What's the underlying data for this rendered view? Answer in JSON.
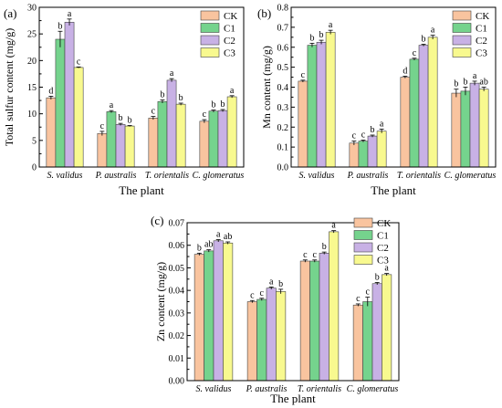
{
  "figure": {
    "legend_labels": [
      "CK",
      "C1",
      "C2",
      "C3"
    ],
    "colors": {
      "CK": "#f9c49f",
      "C1": "#75d38d",
      "C2": "#c8b1e5",
      "C3": "#f8f98f"
    }
  },
  "chart_data": [
    {
      "panel": "(a)",
      "type": "bar",
      "title": "",
      "xlabel": "The plant",
      "ylabel": "Total sulfur content (mg/g)",
      "ylim": [
        0,
        30
      ],
      "yticks": [
        "0",
        "5",
        "10",
        "15",
        "20",
        "25",
        "30"
      ],
      "categories": [
        "S. validus",
        "P. australis",
        "T. orientalis",
        "C. glomeratus"
      ],
      "legend_position": "top-right",
      "series": [
        {
          "name": "CK",
          "values": [
            13.0,
            6.3,
            9.2,
            8.6
          ],
          "errors": [
            0.3,
            0.4,
            0.3,
            0.3
          ],
          "letters": [
            "d",
            "c",
            "c",
            "c"
          ]
        },
        {
          "name": "C1",
          "values": [
            24.0,
            10.4,
            12.3,
            10.5
          ],
          "errors": [
            1.5,
            0.2,
            0.3,
            0.2
          ],
          "letters": [
            "b",
            "a",
            "b",
            "b"
          ]
        },
        {
          "name": "C2",
          "values": [
            27.2,
            8.0,
            16.3,
            10.6
          ],
          "errors": [
            0.6,
            0.2,
            0.3,
            0.2
          ],
          "letters": [
            "a",
            "b",
            "a",
            "b"
          ]
        },
        {
          "name": "C3",
          "values": [
            18.7,
            7.7,
            11.8,
            13.2
          ],
          "errors": [
            0.1,
            0.1,
            0.2,
            0.2
          ],
          "letters": [
            "c",
            "b",
            "b",
            "a"
          ]
        }
      ]
    },
    {
      "panel": "(b)",
      "type": "bar",
      "title": "",
      "xlabel": "The plant",
      "ylabel": "Mn content (mg/g)",
      "ylim": [
        0,
        0.8
      ],
      "yticks": [
        "0.0",
        "0.1",
        "0.2",
        "0.3",
        "0.4",
        "0.5",
        "0.6",
        "0.7",
        "0.8"
      ],
      "categories": [
        "S. validus",
        "P. australis",
        "T. orientalis",
        "C. glomeratus"
      ],
      "legend_position": "top-right",
      "series": [
        {
          "name": "CK",
          "values": [
            0.43,
            0.12,
            0.45,
            0.37
          ],
          "errors": [
            0.005,
            0.01,
            0.005,
            0.02
          ],
          "letters": [
            "c",
            "c",
            "d",
            "b"
          ]
        },
        {
          "name": "C1",
          "values": [
            0.61,
            0.13,
            0.54,
            0.38
          ],
          "errors": [
            0.01,
            0.005,
            0.005,
            0.02
          ],
          "letters": [
            "b",
            "c",
            "c",
            "b"
          ]
        },
        {
          "name": "C2",
          "values": [
            0.625,
            0.155,
            0.61,
            0.42
          ],
          "errors": [
            0.01,
            0.005,
            0.005,
            0.01
          ],
          "letters": [
            "b",
            "b",
            "b",
            "a"
          ]
        },
        {
          "name": "C3",
          "values": [
            0.675,
            0.18,
            0.65,
            0.39
          ],
          "errors": [
            0.01,
            0.01,
            0.01,
            0.01
          ],
          "letters": [
            "a",
            "a",
            "a",
            "ab"
          ]
        }
      ]
    },
    {
      "panel": "(c)",
      "type": "bar",
      "title": "",
      "xlabel": "The plant",
      "ylabel": "Zn content (mg/g)",
      "ylim": [
        0,
        0.07
      ],
      "yticks": [
        "0.00",
        "0.01",
        "0.02",
        "0.03",
        "0.04",
        "0.05",
        "0.06",
        "0.07"
      ],
      "categories": [
        "S. validus",
        "P. australis",
        "T. orientalis",
        "C. glomeratus"
      ],
      "legend_position": "top-right",
      "series": [
        {
          "name": "CK",
          "values": [
            0.056,
            0.035,
            0.053,
            0.0335
          ],
          "errors": [
            0.0005,
            0.0005,
            0.0005,
            0.0005
          ],
          "letters": [
            "b",
            "c",
            "c",
            "c"
          ]
        },
        {
          "name": "C1",
          "values": [
            0.0575,
            0.036,
            0.053,
            0.035
          ],
          "errors": [
            0.0005,
            0.0005,
            0.0005,
            0.002
          ],
          "letters": [
            "ab",
            "c",
            "c",
            "c"
          ]
        },
        {
          "name": "C2",
          "values": [
            0.062,
            0.041,
            0.0565,
            0.043
          ],
          "errors": [
            0.0005,
            0.0005,
            0.0005,
            0.0005
          ],
          "letters": [
            "a",
            "a",
            "b",
            "b"
          ]
        },
        {
          "name": "C3",
          "values": [
            0.061,
            0.0395,
            0.066,
            0.047
          ],
          "errors": [
            0.0005,
            0.001,
            0.0005,
            0.0005
          ],
          "letters": [
            "ab",
            "b",
            "a",
            "a"
          ]
        }
      ]
    }
  ]
}
